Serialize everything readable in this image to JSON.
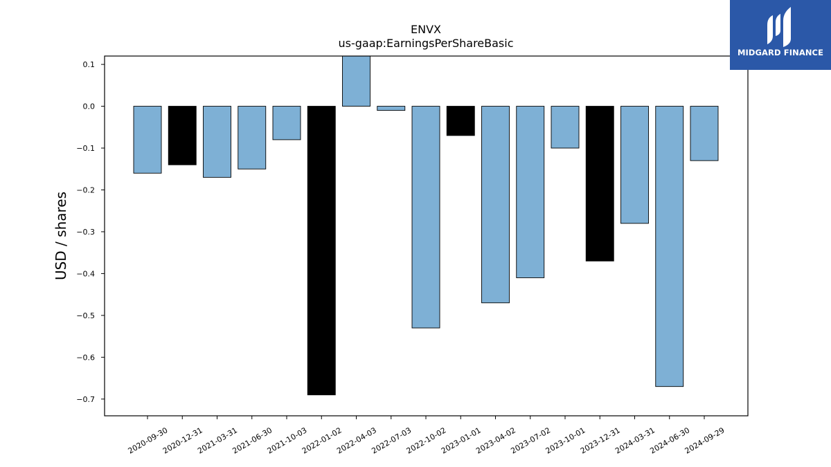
{
  "logo": {
    "text": "MIDGARD FINANCE",
    "color": "#2b58a8"
  },
  "chart_data": {
    "type": "bar",
    "title": "ENVX",
    "subtitle": "us-gaap:EarningsPerShareBasic",
    "xlabel": "",
    "ylabel": "USD / shares",
    "ylim": [
      -0.74,
      0.12
    ],
    "yticks": [
      0.1,
      0.0,
      -0.1,
      -0.2,
      -0.3,
      -0.4,
      -0.5,
      -0.6,
      -0.7
    ],
    "ytick_labels": [
      "0.1",
      "0.0",
      "−0.1",
      "−0.2",
      "−0.3",
      "−0.4",
      "−0.5",
      "−0.6",
      "−0.7"
    ],
    "categories": [
      "2020-09-30",
      "2020-12-31",
      "2021-03-31",
      "2021-06-30",
      "2021-10-03",
      "2022-01-02",
      "2022-04-03",
      "2022-07-03",
      "2022-10-02",
      "2023-01-01",
      "2023-04-02",
      "2023-07-02",
      "2023-10-01",
      "2023-12-31",
      "2024-03-31",
      "2024-06-30",
      "2024-09-29"
    ],
    "values": [
      -0.16,
      -0.14,
      -0.17,
      -0.15,
      -0.08,
      -0.69,
      0.13,
      -0.01,
      -0.53,
      -0.07,
      -0.47,
      -0.41,
      -0.1,
      -0.37,
      -0.28,
      -0.67,
      -0.13
    ],
    "bar_colors": [
      "#7eb0d5",
      "#000000",
      "#7eb0d5",
      "#7eb0d5",
      "#7eb0d5",
      "#000000",
      "#7eb0d5",
      "#7eb0d5",
      "#7eb0d5",
      "#000000",
      "#7eb0d5",
      "#7eb0d5",
      "#7eb0d5",
      "#000000",
      "#7eb0d5",
      "#7eb0d5",
      "#7eb0d5"
    ],
    "grid": false,
    "legend": "none"
  }
}
